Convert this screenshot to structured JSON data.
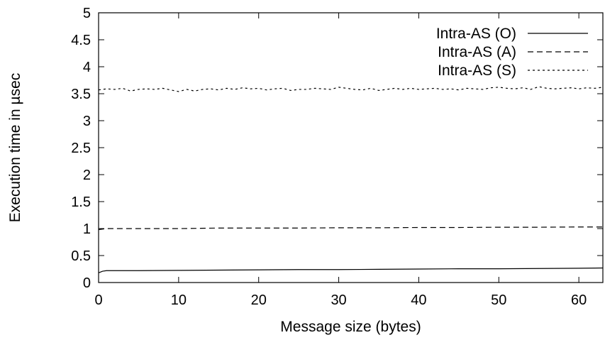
{
  "chart_data": {
    "type": "line",
    "xlabel": "Message size (bytes)",
    "ylabel": "Execution time in µsec",
    "xlim": [
      0,
      63
    ],
    "ylim": [
      0,
      5
    ],
    "xticks": [
      "0",
      "10",
      "20",
      "30",
      "40",
      "50",
      "60"
    ],
    "yticks": [
      "0",
      "0.5",
      "1",
      "1.5",
      "2",
      "2.5",
      "3",
      "3.5",
      "4",
      "4.5",
      "5"
    ],
    "grid": false,
    "legend_position": "top-right",
    "series": [
      {
        "name": "Intra-AS (O)",
        "style": "solid",
        "color": "#000000",
        "x": [
          0,
          0.5,
          1,
          5,
          10,
          15,
          20,
          25,
          30,
          35,
          40,
          45,
          50,
          55,
          60,
          63
        ],
        "y": [
          0.18,
          0.21,
          0.22,
          0.22,
          0.225,
          0.23,
          0.235,
          0.24,
          0.24,
          0.245,
          0.25,
          0.255,
          0.255,
          0.26,
          0.265,
          0.27
        ]
      },
      {
        "name": "Intra-AS (A)",
        "style": "dashed",
        "color": "#000000",
        "x": [
          0,
          1,
          5,
          10,
          15,
          20,
          25,
          30,
          35,
          40,
          45,
          50,
          55,
          60,
          63
        ],
        "y": [
          0.98,
          1.0,
          1.0,
          1.0,
          1.01,
          1.01,
          1.01,
          1.015,
          1.015,
          1.02,
          1.02,
          1.025,
          1.025,
          1.03,
          1.03
        ]
      },
      {
        "name": "Intra-AS (S)",
        "style": "dotted",
        "color": "#000000",
        "x": [
          0,
          1,
          2,
          3,
          4,
          5,
          6,
          7,
          8,
          9,
          10,
          11,
          12,
          13,
          14,
          15,
          16,
          17,
          18,
          19,
          20,
          21,
          22,
          23,
          24,
          25,
          26,
          27,
          28,
          29,
          30,
          31,
          32,
          33,
          34,
          35,
          36,
          37,
          38,
          39,
          40,
          41,
          42,
          43,
          44,
          45,
          46,
          47,
          48,
          49,
          50,
          51,
          52,
          53,
          54,
          55,
          56,
          57,
          58,
          59,
          60,
          61,
          62,
          63
        ],
        "y": [
          3.57,
          3.59,
          3.58,
          3.6,
          3.55,
          3.58,
          3.59,
          3.58,
          3.6,
          3.57,
          3.54,
          3.58,
          3.55,
          3.58,
          3.59,
          3.57,
          3.6,
          3.58,
          3.61,
          3.59,
          3.6,
          3.57,
          3.59,
          3.6,
          3.56,
          3.58,
          3.58,
          3.6,
          3.59,
          3.58,
          3.62,
          3.6,
          3.58,
          3.57,
          3.6,
          3.56,
          3.58,
          3.6,
          3.58,
          3.6,
          3.58,
          3.59,
          3.6,
          3.58,
          3.59,
          3.57,
          3.6,
          3.59,
          3.58,
          3.61,
          3.62,
          3.6,
          3.59,
          3.61,
          3.58,
          3.63,
          3.6,
          3.59,
          3.6,
          3.61,
          3.59,
          3.61,
          3.6,
          3.62
        ]
      }
    ]
  }
}
